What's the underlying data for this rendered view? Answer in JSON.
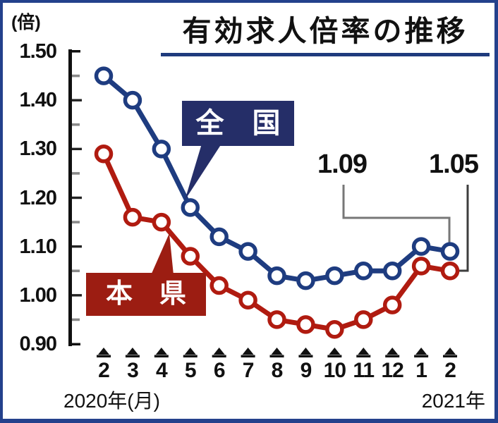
{
  "header": {
    "title": "有効求人倍率の推移",
    "unit_label": "(倍)"
  },
  "legend": {
    "national_label": "全　国",
    "prefecture_label": "本　県"
  },
  "footer": {
    "left_label": "2020年(月)",
    "right_label": "2021年"
  },
  "colors": {
    "national_line": "#1e3c80",
    "national_box": "#252e68",
    "prefecture_line": "#b01b10",
    "prefecture_box": "#9c1d12",
    "axis": "#111111",
    "major_tick": "#222222",
    "minor_tick": "#8a8a8a",
    "leader_gray": "#777777",
    "leader_dark": "#3d3d3d",
    "title_underline": "#1f3b7d",
    "border": "#24418c",
    "marker_fill": "#ffffff"
  },
  "chart_data": {
    "type": "line",
    "title": "有効求人倍率の推移",
    "ylabel_unit": "倍",
    "ylim": [
      0.9,
      1.5
    ],
    "yticks_major": [
      "1.50",
      "1.40",
      "1.30",
      "1.20",
      "1.10",
      "1.00",
      "0.90"
    ],
    "yticks_minor": [
      1.45,
      1.35,
      1.25,
      1.15,
      1.05,
      0.95
    ],
    "grid": false,
    "x_categories": [
      "2",
      "3",
      "4",
      "5",
      "6",
      "7",
      "8",
      "9",
      "10",
      "11",
      "12",
      "1",
      "2"
    ],
    "x_axis_note_left": "2020年(月)",
    "x_axis_note_right": "2021年",
    "legend_position": "inside-callout-boxes",
    "series": [
      {
        "name": "全国",
        "color": "#1e3c80",
        "values": [
          1.45,
          1.4,
          1.3,
          1.18,
          1.12,
          1.09,
          1.04,
          1.03,
          1.04,
          1.05,
          1.05,
          1.1,
          1.09
        ]
      },
      {
        "name": "本県",
        "color": "#b01b10",
        "values": [
          1.29,
          1.16,
          1.15,
          1.08,
          1.02,
          0.99,
          0.95,
          0.94,
          0.93,
          0.95,
          0.98,
          1.06,
          1.05
        ]
      }
    ],
    "annotations": [
      {
        "text": "1.09",
        "target_series": "全国",
        "target_x_label": "2 (2021年)"
      },
      {
        "text": "1.05",
        "target_series": "本県",
        "target_x_label": "2 (2021年)"
      }
    ]
  }
}
